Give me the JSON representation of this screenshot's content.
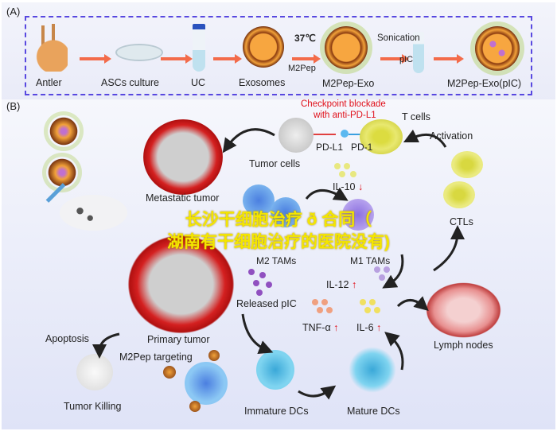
{
  "panel_a": {
    "label": "(A)",
    "steps": [
      "Antler",
      "ASCs culture",
      "UC",
      "Exosomes",
      "M2Pep-Exo",
      "M2Pep-Exo(pIC)"
    ],
    "temperature": "37℃",
    "peptide": "M2Pep",
    "sonication": "Sonication",
    "pic": "pIC"
  },
  "panel_b": {
    "label": "(B)",
    "checkpoint_line1": "Checkpoint blockade",
    "checkpoint_line2": "with anti-PD-L1",
    "t_cells": "T cells",
    "pd_l1": "PD-L1",
    "pd_1": "PD-1",
    "tumor_cells": "Tumor cells",
    "metastatic_tumor": "Metastatic tumor",
    "il10": "IL-10",
    "activation": "Activation",
    "ctls": "CTLs",
    "m2_tams": "M2 TAMs",
    "m1_tams": "M1 TAMs",
    "il12": "IL-12",
    "released_pic": "Released pIC",
    "tnf": "TNF-α",
    "il6": "IL-6",
    "lymph_nodes": "Lymph nodes",
    "primary_tumor": "Primary tumor",
    "apoptosis": "Apoptosis",
    "m2pep_targeting": "M2Pep targeting",
    "tumor_killing": "Tumor Killing",
    "immature_dcs": "Immature DCs",
    "mature_dcs": "Mature DCs",
    "up_arrow": "↑",
    "down_arrow": "↓"
  },
  "watermark": {
    "line1": "长沙干细胞治疗 ð 合同（",
    "line2": "湖南有干细胞治疗的医院没有)"
  },
  "colors": {
    "dashed_border": "#5848e0",
    "accent_red": "#e0101a",
    "watermark": "#f4e600"
  }
}
